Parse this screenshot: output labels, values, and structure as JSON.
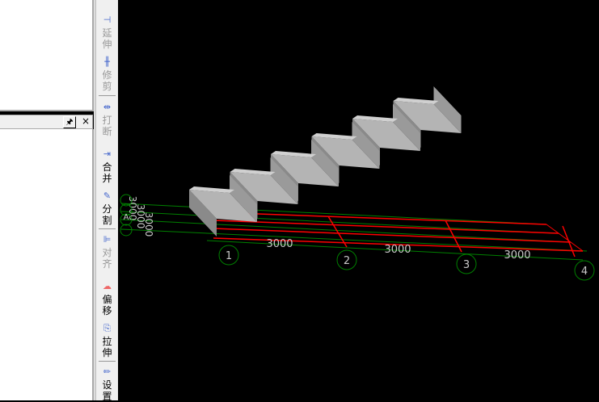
{
  "toolbar": {
    "items": [
      {
        "label": "延伸",
        "icon": "extend-icon",
        "enabled": false
      },
      {
        "label": "修剪",
        "icon": "trim-icon",
        "enabled": false
      },
      {
        "label": "打断",
        "icon": "break-icon",
        "enabled": false
      },
      {
        "label": "合并",
        "icon": "merge-icon",
        "enabled": true
      },
      {
        "label": "分割",
        "icon": "split-icon",
        "enabled": true
      },
      {
        "label": "对齐",
        "icon": "align-icon",
        "enabled": false
      },
      {
        "label": "偏移",
        "icon": "offset-icon",
        "enabled": true
      },
      {
        "label": "拉伸",
        "icon": "stretch-icon",
        "enabled": true
      },
      {
        "label": "设置",
        "icon": "settings-icon",
        "enabled": true
      }
    ]
  },
  "panel": {
    "pin": "🖈",
    "close": "×"
  },
  "canvas": {
    "axes": [
      "1",
      "2",
      "3",
      "4"
    ],
    "dims": [
      "3000",
      "3000",
      "3000"
    ],
    "side_dims": [
      "3000",
      "3000",
      "3000"
    ],
    "side_axis": "A",
    "colors": {
      "grid": "#008000",
      "beam": "#ff0000",
      "stair": "#a0a0a0",
      "text": "#c8c8c8"
    }
  }
}
